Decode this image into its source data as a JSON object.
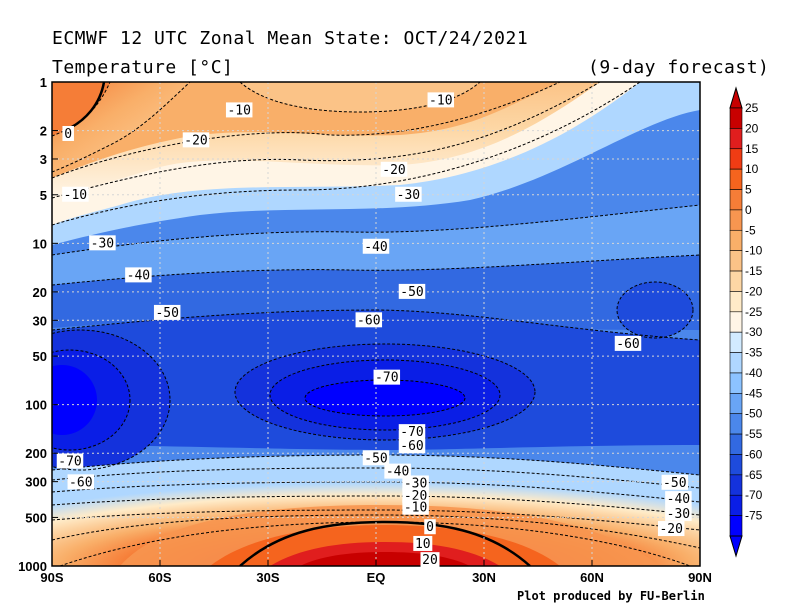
{
  "header": {
    "title": "ECMWF 12 UTC Zonal Mean State: OCT/24/2021",
    "subtitle": "Temperature [°C]",
    "forecast": "(9-day forecast)"
  },
  "footer": {
    "credit": "Plot produced by FU-Berlin"
  },
  "chart_data": {
    "type": "heatmap",
    "x_ticks": [
      "90S",
      "60S",
      "30S",
      "EQ",
      "30N",
      "60N",
      "90N"
    ],
    "x_values": [
      -90,
      -60,
      -30,
      0,
      30,
      60,
      90
    ],
    "y_ticks": [
      "1",
      "2",
      "3",
      "5",
      "10",
      "20",
      "30",
      "50",
      "100",
      "200",
      "300",
      "500",
      "1000"
    ],
    "y_values": [
      1,
      2,
      3,
      5,
      10,
      20,
      30,
      50,
      100,
      200,
      300,
      500,
      1000
    ],
    "y_scale": "log",
    "y_inverted": true,
    "xlim": [
      -90,
      90
    ],
    "ylim": [
      1000,
      1
    ],
    "grid": true,
    "colorbar": {
      "labels": [
        "25",
        "20",
        "15",
        "10",
        "5",
        "0",
        "-5",
        "-10",
        "-15",
        "-20",
        "-25",
        "-30",
        "-35",
        "-40",
        "-45",
        "-50",
        "-55",
        "-60",
        "-65",
        "-70",
        "-75"
      ],
      "colors": [
        "#c80000",
        "#e01e1e",
        "#f03c14",
        "#f5641e",
        "#f57d37",
        "#f79650",
        "#f9af69",
        "#fbc387",
        "#fdd7a5",
        "#ffebc8",
        "#fff5e6",
        "#d2ebff",
        "#afd7ff",
        "#8cc3ff",
        "#69a5f5",
        "#4b87eb",
        "#3269e1",
        "#1e4bdc",
        "#1432dc",
        "#0a1ee6",
        "#0000ff"
      ]
    },
    "contour_labels": [
      {
        "text": "0",
        "x": -85.5,
        "p": 2.1
      },
      {
        "text": "-10",
        "x": -83.5,
        "p": 5.0
      },
      {
        "text": "-10",
        "x": -38,
        "p": 1.5
      },
      {
        "text": "-10",
        "x": 18,
        "p": 1.3
      },
      {
        "text": "-20",
        "x": -50,
        "p": 2.3
      },
      {
        "text": "-20",
        "x": 5,
        "p": 3.5
      },
      {
        "text": "-30",
        "x": 9,
        "p": 5.0
      },
      {
        "text": "-30",
        "x": -76,
        "p": 10.0
      },
      {
        "text": "-40",
        "x": 0,
        "p": 10.5
      },
      {
        "text": "-40",
        "x": -66,
        "p": 15.8
      },
      {
        "text": "-50",
        "x": 10,
        "p": 20.0
      },
      {
        "text": "-50",
        "x": -58,
        "p": 27.0
      },
      {
        "text": "-60",
        "x": -2,
        "p": 30.0
      },
      {
        "text": "-60",
        "x": 70,
        "p": 42.0
      },
      {
        "text": "-70",
        "x": 3,
        "p": 68.0
      },
      {
        "text": "-70",
        "x": 10,
        "p": 148.0
      },
      {
        "text": "-60",
        "x": 10,
        "p": 181.0
      },
      {
        "text": "-50",
        "x": 0,
        "p": 215.0
      },
      {
        "text": "-40",
        "x": 6,
        "p": 260.0
      },
      {
        "text": "-30",
        "x": 11,
        "p": 308.0
      },
      {
        "text": "-20",
        "x": 11,
        "p": 368.0
      },
      {
        "text": "-10",
        "x": 11,
        "p": 435.0
      },
      {
        "text": "0",
        "x": 15,
        "p": 575.0
      },
      {
        "text": "10",
        "x": 13,
        "p": 730.0
      },
      {
        "text": "20",
        "x": 15,
        "p": 920.0
      },
      {
        "text": "-70",
        "x": -85,
        "p": 225.0
      },
      {
        "text": "-60",
        "x": -82,
        "p": 303.0
      },
      {
        "text": "-50",
        "x": 83,
        "p": 305.0
      },
      {
        "text": "-40",
        "x": 84,
        "p": 385.0
      },
      {
        "text": "-30",
        "x": 84,
        "p": 475.0
      },
      {
        "text": "-20",
        "x": 82,
        "p": 590.0
      }
    ]
  }
}
